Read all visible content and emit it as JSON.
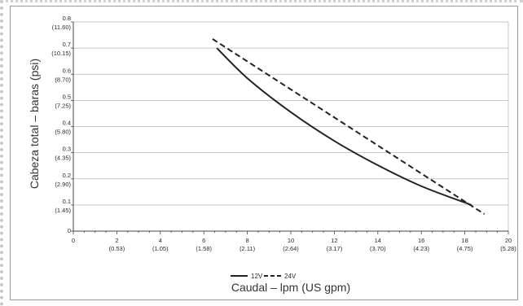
{
  "chart_data": {
    "type": "line",
    "xlabel": "Caudal – lpm (US gpm)",
    "ylabel": "Cabeza total – baras (psi)",
    "xlim": [
      0,
      20
    ],
    "ylim": [
      0,
      0.8
    ],
    "grid": "horizontal",
    "legend_position": "bottom-center",
    "x_ticks": [
      {
        "value": 0,
        "label": "0",
        "sub": ""
      },
      {
        "value": 2,
        "label": "2",
        "sub": "(0.53)"
      },
      {
        "value": 4,
        "label": "4",
        "sub": "(1.05)"
      },
      {
        "value": 6,
        "label": "6",
        "sub": "(1.58)"
      },
      {
        "value": 8,
        "label": "8",
        "sub": "(2.11)"
      },
      {
        "value": 10,
        "label": "10",
        "sub": "(2.64)"
      },
      {
        "value": 12,
        "label": "12",
        "sub": "(3.17)"
      },
      {
        "value": 14,
        "label": "14",
        "sub": "(3.70)"
      },
      {
        "value": 16,
        "label": "16",
        "sub": "(4.23)"
      },
      {
        "value": 18,
        "label": "18",
        "sub": "(4.75)"
      },
      {
        "value": 20,
        "label": "20",
        "sub": "(5.28)"
      }
    ],
    "y_ticks": [
      {
        "value": 0,
        "label": "0",
        "sub": ""
      },
      {
        "value": 0.1,
        "label": "0.1",
        "sub": "(1.45)"
      },
      {
        "value": 0.2,
        "label": "0.2",
        "sub": "(2.90)"
      },
      {
        "value": 0.3,
        "label": "0.3",
        "sub": "(4.35)"
      },
      {
        "value": 0.4,
        "label": "0.4",
        "sub": "(5.80)"
      },
      {
        "value": 0.5,
        "label": "0.5",
        "sub": "(7.25)"
      },
      {
        "value": 0.6,
        "label": "0.6",
        "sub": "(8.70)"
      },
      {
        "value": 0.7,
        "label": "0.7",
        "sub": "(10.15)"
      },
      {
        "value": 0.8,
        "label": "0.8",
        "sub": "(11.60)"
      }
    ],
    "series": [
      {
        "name": "12V",
        "style": "solid",
        "color": "#222222",
        "points": [
          [
            6.6,
            0.7
          ],
          [
            8,
            0.585
          ],
          [
            10,
            0.455
          ],
          [
            12,
            0.345
          ],
          [
            14,
            0.252
          ],
          [
            16,
            0.172
          ],
          [
            18.3,
            0.1
          ]
        ]
      },
      {
        "name": "24V",
        "style": "dashed",
        "color": "#222222",
        "points": [
          [
            6.4,
            0.735
          ],
          [
            18.9,
            0.065
          ]
        ]
      }
    ]
  }
}
